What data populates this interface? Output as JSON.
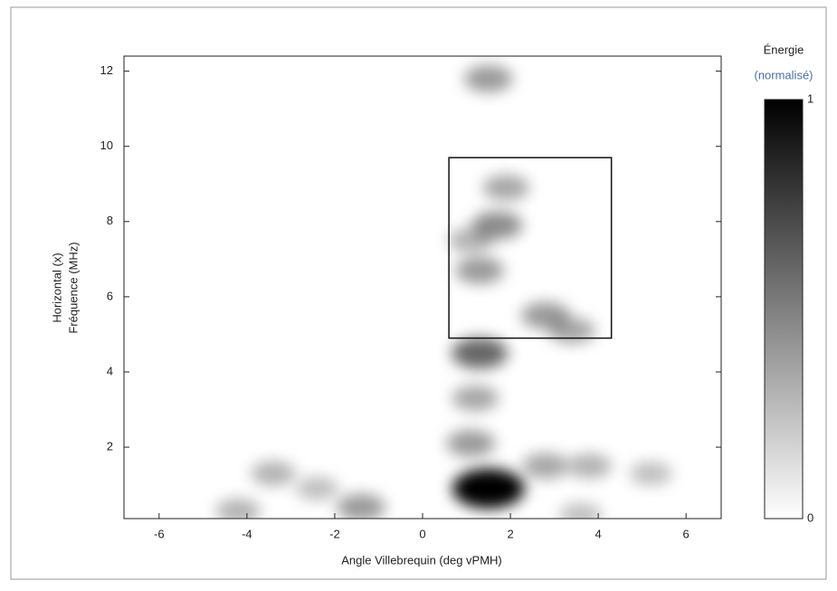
{
  "chart_data": {
    "type": "heatmap",
    "xlabel": "Angle Villebrequin (deg vPMH)",
    "ylabel": [
      "Horizontal (x)",
      "Fréquence (MHz)"
    ],
    "colorbar_label": [
      "Énergie",
      "(normalisé)"
    ],
    "xlim": [
      -6.8,
      6.8
    ],
    "xticks": [
      -6,
      -4,
      -2,
      0,
      2,
      4,
      6
    ],
    "ylim": [
      0.1,
      12.4
    ],
    "yticks": [
      2,
      4,
      6,
      8,
      10,
      12
    ],
    "clim": [
      0,
      1
    ],
    "cticks": [
      0,
      1
    ],
    "x": [
      1.5,
      1.3,
      1.2,
      1.5,
      1.7,
      1.3,
      2.8,
      1.9,
      1.1,
      3.4,
      -3.4,
      -4.2,
      -2.4,
      -1.4,
      3.8,
      5.2,
      2.8,
      3.6,
      1.1
    ],
    "y": [
      0.9,
      4.5,
      3.3,
      11.8,
      7.9,
      6.7,
      5.5,
      8.9,
      7.5,
      5.1,
      1.3,
      0.3,
      0.9,
      0.4,
      1.5,
      1.3,
      1.5,
      0.2,
      2.1
    ],
    "values": [
      1,
      0.6,
      0.35,
      0.4,
      0.45,
      0.4,
      0.4,
      0.35,
      0.3,
      0.35,
      0.3,
      0.3,
      0.25,
      0.4,
      0.3,
      0.25,
      0.35,
      0.25,
      0.4
    ],
    "box": {
      "x": [
        0.6,
        4.3
      ],
      "y": [
        4.9,
        9.7
      ]
    }
  }
}
